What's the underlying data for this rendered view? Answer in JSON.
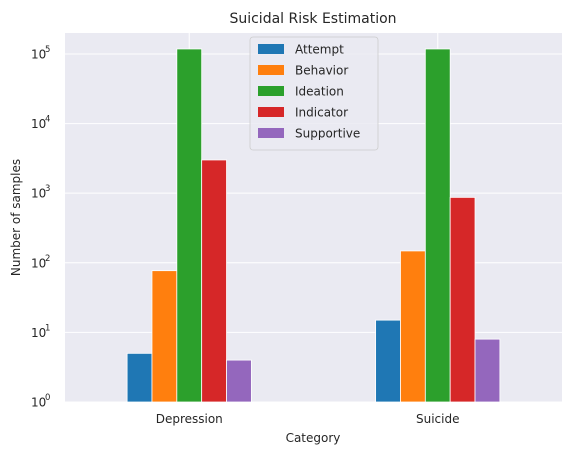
{
  "chart_data": {
    "type": "bar",
    "title": "Suicidal Risk Estimation",
    "xlabel": "Category",
    "ylabel": "Number of samples",
    "yscale": "log",
    "ylim": [
      1,
      200000
    ],
    "y_ticks": [
      {
        "value": 1,
        "base": "10",
        "exp": "0"
      },
      {
        "value": 10,
        "base": "10",
        "exp": "1"
      },
      {
        "value": 100,
        "base": "10",
        "exp": "2"
      },
      {
        "value": 1000,
        "base": "10",
        "exp": "3"
      },
      {
        "value": 10000,
        "base": "10",
        "exp": "4"
      },
      {
        "value": 100000,
        "base": "10",
        "exp": "5"
      }
    ],
    "categories": [
      "Depression",
      "Suicide"
    ],
    "series": [
      {
        "name": "Attempt",
        "color": "#1f77b4",
        "values": [
          5,
          15
        ]
      },
      {
        "name": "Behavior",
        "color": "#ff7f0e",
        "values": [
          77,
          148
        ]
      },
      {
        "name": "Ideation",
        "color": "#2ca02c",
        "values": [
          118000,
          118000
        ]
      },
      {
        "name": "Indicator",
        "color": "#d62728",
        "values": [
          3000,
          870
        ]
      },
      {
        "name": "Supportive",
        "color": "#9467bd",
        "values": [
          4,
          8
        ]
      }
    ],
    "grid": true,
    "legend_position": "top-center",
    "background": "#eaeaf2"
  }
}
